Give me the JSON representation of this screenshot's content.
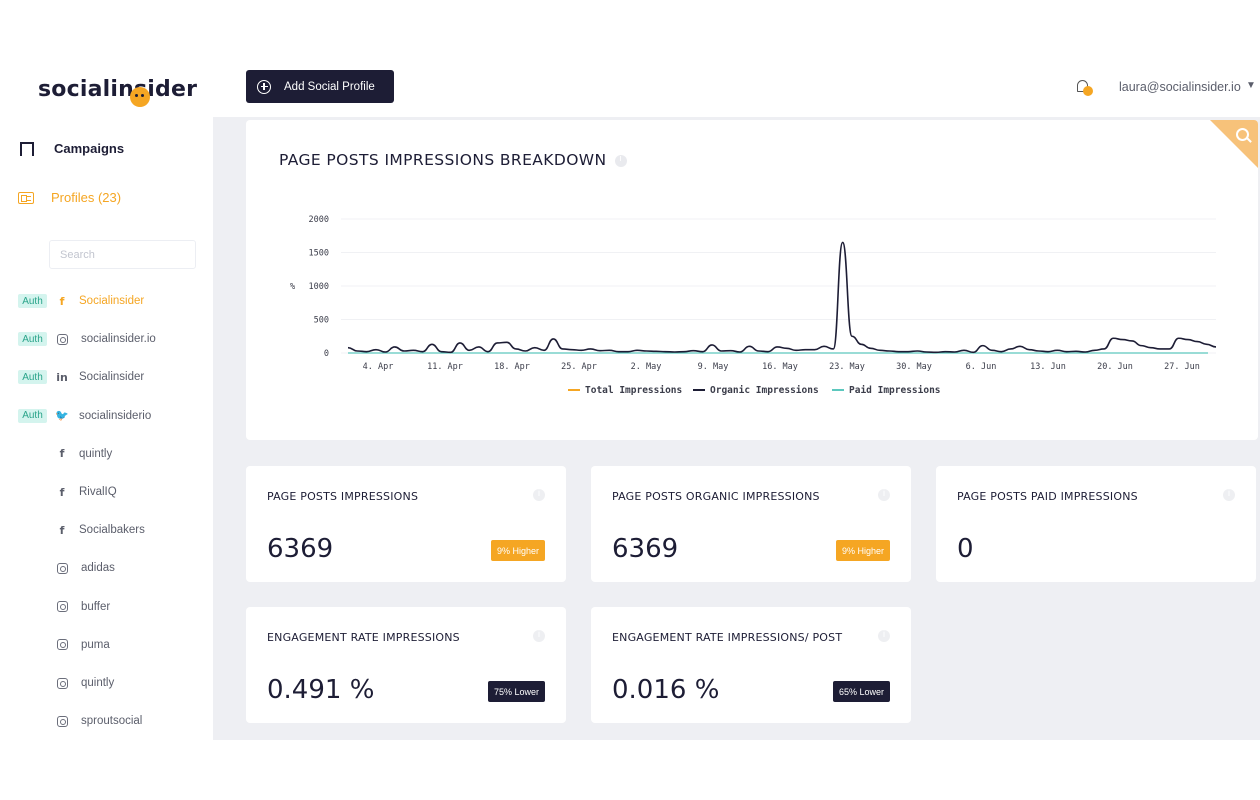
{
  "brand": {
    "logo_text": "socialinsider",
    "accent": "#f5a623",
    "dark": "#1d1d35"
  },
  "sidebar": {
    "nav": [
      {
        "label": "Campaigns",
        "icon": "bookmark-icon"
      },
      {
        "label": "Profiles (23)",
        "icon": "profile-card-icon"
      }
    ],
    "search_placeholder": "Search",
    "profiles": [
      {
        "auth": "Auth",
        "network": "facebook",
        "glyph": "f",
        "name": "Socialinsider",
        "active": true
      },
      {
        "auth": "Auth",
        "network": "instagram",
        "glyph": "",
        "name": "socialinsider.io"
      },
      {
        "auth": "Auth",
        "network": "linkedin",
        "glyph": "in",
        "name": "Socialinsider"
      },
      {
        "auth": "Auth",
        "network": "twitter",
        "glyph": "🐦",
        "name": "socialinsiderio"
      },
      {
        "auth": "",
        "network": "facebook",
        "glyph": "f",
        "name": "quintly"
      },
      {
        "auth": "",
        "network": "facebook",
        "glyph": "f",
        "name": "RivalIQ"
      },
      {
        "auth": "",
        "network": "facebook",
        "glyph": "f",
        "name": "Socialbakers"
      },
      {
        "auth": "",
        "network": "instagram",
        "glyph": "",
        "name": "adidas"
      },
      {
        "auth": "",
        "network": "instagram",
        "glyph": "",
        "name": "buffer"
      },
      {
        "auth": "",
        "network": "instagram",
        "glyph": "",
        "name": "puma"
      },
      {
        "auth": "",
        "network": "instagram",
        "glyph": "",
        "name": "quintly"
      },
      {
        "auth": "",
        "network": "instagram",
        "glyph": "",
        "name": "sproutsocial"
      }
    ]
  },
  "topbar": {
    "add_button_label": "Add Social Profile",
    "user_email": "laura@socialinsider.io",
    "caret": "▼"
  },
  "chart_card": {
    "title": "PAGE POSTS IMPRESSIONS BREAKDOWN"
  },
  "chart_data": {
    "type": "line",
    "title": "PAGE POSTS IMPRESSIONS BREAKDOWN",
    "ylabel": "",
    "ylim": [
      0,
      2000
    ],
    "yticks": [
      0,
      500,
      1000,
      1500,
      2000
    ],
    "xticks": [
      "4. Apr",
      "11. Apr",
      "18. Apr",
      "25. Apr",
      "2. May",
      "9. May",
      "16. May",
      "23. May",
      "30. May",
      "6. Jun",
      "13. Jun",
      "20. Jun",
      "27. Jun"
    ],
    "legend": "bottom-center",
    "series": [
      {
        "name": "Total Impressions",
        "color": "#f5a623",
        "values": []
      },
      {
        "name": "Organic Impressions",
        "color": "#1d1d35",
        "values": [
          80,
          30,
          20,
          50,
          15,
          90,
          30,
          40,
          20,
          130,
          20,
          10,
          150,
          40,
          90,
          20,
          150,
          160,
          60,
          30,
          80,
          40,
          210,
          60,
          50,
          40,
          60,
          35,
          40,
          20,
          20,
          40,
          30,
          25,
          20,
          15,
          20,
          35,
          20,
          120,
          30,
          35,
          15,
          100,
          30,
          20,
          90,
          70,
          40,
          50,
          50,
          100,
          60,
          1650,
          250,
          130,
          70,
          40,
          30,
          20,
          20,
          30,
          15,
          10,
          20,
          15,
          40,
          10,
          110,
          40,
          20,
          60,
          100,
          50,
          30,
          20,
          40,
          20,
          25,
          15,
          40,
          60,
          220,
          200,
          180,
          110,
          80,
          60,
          60,
          220,
          200,
          170,
          130,
          90
        ]
      },
      {
        "name": "Paid Impressions",
        "color": "#5cc8be",
        "values": [
          0,
          0
        ]
      }
    ]
  },
  "metrics": [
    {
      "label": "PAGE POSTS IMPRESSIONS",
      "value": "6369",
      "badge": "9% Higher",
      "badge_type": "higher"
    },
    {
      "label": "PAGE POSTS ORGANIC IMPRESSIONS",
      "value": "6369",
      "badge": "9% Higher",
      "badge_type": "higher"
    },
    {
      "label": "PAGE POSTS PAID IMPRESSIONS",
      "value": "0",
      "badge": "",
      "badge_type": ""
    },
    {
      "label": "ENGAGEMENT RATE IMPRESSIONS",
      "value": "0.491 %",
      "badge": "75% Lower",
      "badge_type": "lower"
    },
    {
      "label": "ENGAGEMENT RATE IMPRESSIONS/ POST",
      "value": "0.016 %",
      "badge": "65% Lower",
      "badge_type": "lower"
    }
  ]
}
